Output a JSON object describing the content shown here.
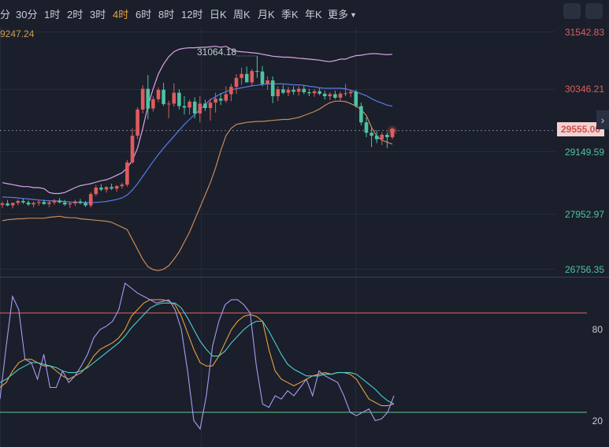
{
  "toolbar": {
    "timeframes": [
      "分",
      "30分",
      "1时",
      "2时",
      "3时",
      "4时",
      "6时",
      "8时",
      "12时",
      "日K",
      "周K",
      "月K",
      "季K",
      "年K",
      "更多"
    ],
    "active": "4时"
  },
  "price_axis": {
    "ticks": [
      "31542.83",
      "30346.21",
      "29149.59",
      "27952.97",
      "26756.35"
    ],
    "last_price": "29555.00",
    "left_clip_label": "9247.24",
    "max_label": "31064.18"
  },
  "colors": {
    "up": "#e05c5c",
    "down": "#4fc3a1",
    "boll_upper": "#d9a3e6",
    "boll_mid": "#5a7ae6",
    "boll_lower": "#c8895a",
    "kdj_k": "#e8a23a",
    "kdj_d": "#4fd0d0",
    "kdj_j": "#a99af0",
    "level_80": "#e06666",
    "level_20": "#5fc98e"
  },
  "chart_data": [
    {
      "type": "candlestick",
      "ylim": [
        26756.35,
        31542.83
      ],
      "yticks": [
        31542.83,
        30346.21,
        29149.59,
        27952.97,
        26756.35
      ],
      "ohlc": [
        [
          28050,
          28120,
          27990,
          28080
        ],
        [
          28080,
          28150,
          28020,
          28040
        ],
        [
          28040,
          28100,
          27980,
          28090
        ],
        [
          28090,
          28160,
          28040,
          28130
        ],
        [
          28130,
          28180,
          28070,
          28100
        ],
        [
          28100,
          28140,
          28030,
          28060
        ],
        [
          28060,
          28120,
          28000,
          28090
        ],
        [
          28090,
          28150,
          28030,
          28110
        ],
        [
          28110,
          28160,
          28050,
          28070
        ],
        [
          28070,
          28130,
          28010,
          28100
        ],
        [
          28100,
          28170,
          28050,
          28140
        ],
        [
          28140,
          28190,
          28080,
          28100
        ],
        [
          28100,
          28150,
          28030,
          28060
        ],
        [
          28060,
          28110,
          27990,
          28080
        ],
        [
          28080,
          28150,
          28030,
          28120
        ],
        [
          28120,
          28170,
          28060,
          28090
        ],
        [
          28090,
          28130,
          28010,
          28040
        ],
        [
          28040,
          28310,
          28000,
          28270
        ],
        [
          28270,
          28450,
          28230,
          28400
        ],
        [
          28400,
          28470,
          28330,
          28360
        ],
        [
          28360,
          28430,
          28300,
          28410
        ],
        [
          28410,
          28480,
          28350,
          28380
        ],
        [
          28380,
          28450,
          28320,
          28430
        ],
        [
          28430,
          28500,
          28380,
          28460
        ],
        [
          28460,
          28960,
          28420,
          28910
        ],
        [
          28910,
          29600,
          28880,
          29450
        ],
        [
          29450,
          30030,
          29380,
          29980
        ],
        [
          29980,
          30470,
          29900,
          30400
        ],
        [
          30400,
          30680,
          29780,
          30000
        ],
        [
          30000,
          30250,
          29940,
          30190
        ],
        [
          30190,
          30430,
          30130,
          30380
        ],
        [
          30380,
          30520,
          30050,
          30090
        ],
        [
          30090,
          30160,
          29800,
          30100
        ],
        [
          30100,
          30510,
          30040,
          30320
        ],
        [
          30320,
          30390,
          29980,
          30050
        ],
        [
          30050,
          30250,
          29880,
          30020
        ],
        [
          30020,
          30180,
          29880,
          30140
        ],
        [
          30140,
          30230,
          29800,
          29900
        ],
        [
          29900,
          30250,
          29720,
          30100
        ],
        [
          30100,
          30180,
          29950,
          30010
        ],
        [
          30010,
          30200,
          29760,
          30120
        ],
        [
          30120,
          30320,
          29920,
          30200
        ],
        [
          30200,
          30310,
          30070,
          30160
        ],
        [
          30160,
          30450,
          30120,
          30290
        ],
        [
          30290,
          30500,
          30150,
          30440
        ],
        [
          30440,
          30700,
          30300,
          30620
        ],
        [
          30620,
          30830,
          30480,
          30700
        ],
        [
          30700,
          30850,
          30550,
          30530
        ],
        [
          30530,
          30800,
          30460,
          30760
        ],
        [
          30760,
          31064.18,
          30620,
          30750
        ],
        [
          30750,
          30860,
          30450,
          30500
        ],
        [
          30500,
          30650,
          30380,
          30570
        ],
        [
          30570,
          30650,
          30110,
          30250
        ],
        [
          30250,
          30450,
          30150,
          30390
        ],
        [
          30390,
          30480,
          30290,
          30320
        ],
        [
          30320,
          30440,
          30250,
          30380
        ],
        [
          30380,
          30450,
          30280,
          30340
        ],
        [
          30340,
          30450,
          30260,
          30400
        ],
        [
          30400,
          30470,
          30290,
          30330
        ],
        [
          30330,
          30400,
          30250,
          30310
        ],
        [
          30310,
          30390,
          30240,
          30350
        ],
        [
          30350,
          30410,
          30270,
          30300
        ],
        [
          30300,
          30360,
          30180,
          30250
        ],
        [
          30250,
          30330,
          30170,
          30290
        ],
        [
          30290,
          30360,
          30190,
          30220
        ],
        [
          30220,
          30340,
          30150,
          30300
        ],
        [
          30300,
          30500,
          30250,
          30310
        ],
        [
          30310,
          30380,
          30230,
          30340
        ],
        [
          30340,
          30380,
          30020,
          30050
        ],
        [
          30050,
          30120,
          29660,
          29720
        ],
        [
          29720,
          29820,
          29420,
          29510
        ],
        [
          29510,
          29620,
          29220,
          29450
        ],
        [
          29450,
          29560,
          29300,
          29380
        ],
        [
          29380,
          29520,
          29260,
          29470
        ],
        [
          29470,
          29520,
          29200,
          29420
        ],
        [
          29420,
          29590,
          29380,
          29555
        ]
      ],
      "boll": {
        "upper": [
          28500,
          28480,
          28460,
          28440,
          28420,
          28420,
          28400,
          28400,
          28380,
          28300,
          28280,
          28280,
          28300,
          28350,
          28400,
          28440,
          28460,
          28480,
          28510,
          28540,
          28560,
          28600,
          28650,
          28700,
          28800,
          28950,
          29200,
          29600,
          30050,
          30400,
          30700,
          30900,
          31050,
          31150,
          31200,
          31220,
          31230,
          31230,
          31240,
          31240,
          31250,
          31260,
          31240,
          31260,
          31200,
          31160,
          31150,
          31140,
          31130,
          31120,
          31100,
          31080,
          31060,
          31050,
          31040,
          31040,
          31030,
          31020,
          31010,
          31000,
          30990,
          30980,
          30960,
          30950,
          30970,
          31000,
          31000,
          31040,
          31070,
          31080,
          31100,
          31110,
          31110,
          31100,
          31090,
          31100
        ],
        "mid": [
          28210,
          28205,
          28200,
          28190,
          28180,
          28170,
          28160,
          28150,
          28140,
          28135,
          28130,
          28125,
          28120,
          28110,
          28100,
          28100,
          28100,
          28100,
          28100,
          28110,
          28120,
          28140,
          28160,
          28190,
          28250,
          28350,
          28480,
          28630,
          28780,
          28930,
          29070,
          29200,
          29320,
          29440,
          29560,
          29680,
          29780,
          29880,
          29980,
          30080,
          30180,
          30240,
          30300,
          30340,
          30380,
          30400,
          30420,
          30440,
          30460,
          30470,
          30490,
          30500,
          30500,
          30500,
          30500,
          30490,
          30480,
          30480,
          30470,
          30450,
          30440,
          30420,
          30410,
          30410,
          30410,
          30410,
          30400,
          30370,
          30340,
          30300,
          30260,
          30200,
          30150,
          30110,
          30070,
          30050
        ],
        "lower": [
          27730,
          27750,
          27760,
          27770,
          27770,
          27780,
          27780,
          27780,
          27780,
          27800,
          27810,
          27820,
          27800,
          27790,
          27790,
          27770,
          27760,
          27750,
          27740,
          27730,
          27720,
          27700,
          27650,
          27600,
          27550,
          27350,
          27150,
          26950,
          26800,
          26740,
          26720,
          26750,
          26820,
          26950,
          27100,
          27300,
          27500,
          27750,
          28000,
          28250,
          28500,
          28800,
          29150,
          29450,
          29600,
          29680,
          29700,
          29720,
          29730,
          29740,
          29740,
          29750,
          29760,
          29770,
          29780,
          29780,
          29800,
          29820,
          29860,
          29900,
          29940,
          29990,
          30060,
          30120,
          30150,
          30150,
          30140,
          30100,
          30050,
          29980,
          29860,
          29620,
          29440,
          29360,
          29320,
          29280
        ]
      }
    },
    {
      "type": "line",
      "ylim": [
        0,
        100
      ],
      "yticks": [
        80,
        20
      ],
      "series": [
        {
          "values": [
            35,
            38,
            45,
            50,
            52,
            52,
            50,
            48,
            48,
            45,
            42,
            40,
            42,
            44,
            48,
            54,
            58,
            60,
            62,
            65,
            70,
            78,
            82,
            86,
            88,
            88,
            88,
            87,
            85,
            78,
            68,
            58,
            50,
            48,
            48,
            54,
            62,
            70,
            75,
            78,
            79,
            78,
            75,
            58,
            45,
            40,
            38,
            36,
            38,
            40,
            42,
            43,
            44,
            43,
            44,
            44,
            43,
            40,
            34,
            28,
            26,
            24,
            24,
            25
          ]
        },
        {
          "values": [
            38,
            40,
            43,
            46,
            48,
            50,
            50,
            49,
            48,
            47,
            45,
            44,
            44,
            45,
            47,
            50,
            53,
            56,
            59,
            62,
            66,
            71,
            75,
            79,
            83,
            85,
            86,
            86,
            86,
            83,
            77,
            70,
            63,
            58,
            54,
            54,
            57,
            62,
            66,
            70,
            73,
            75,
            75,
            69,
            62,
            55,
            49,
            46,
            44,
            42,
            42,
            42,
            43,
            43,
            44,
            44,
            44,
            43,
            40,
            37,
            34,
            30,
            27,
            25
          ]
        },
        {
          "values": [
            28,
            60,
            90,
            82,
            52,
            50,
            40,
            55,
            35,
            35,
            45,
            38,
            42,
            48,
            55,
            65,
            70,
            72,
            75,
            82,
            98,
            95,
            92,
            90,
            88,
            86,
            87,
            88,
            82,
            70,
            45,
            15,
            10,
            30,
            60,
            75,
            85,
            88,
            88,
            85,
            80,
            48,
            25,
            23,
            30,
            28,
            33,
            30,
            35,
            40,
            30,
            45,
            42,
            40,
            38,
            30,
            20,
            18,
            20,
            22,
            15,
            16,
            20,
            30
          ]
        }
      ]
    }
  ]
}
